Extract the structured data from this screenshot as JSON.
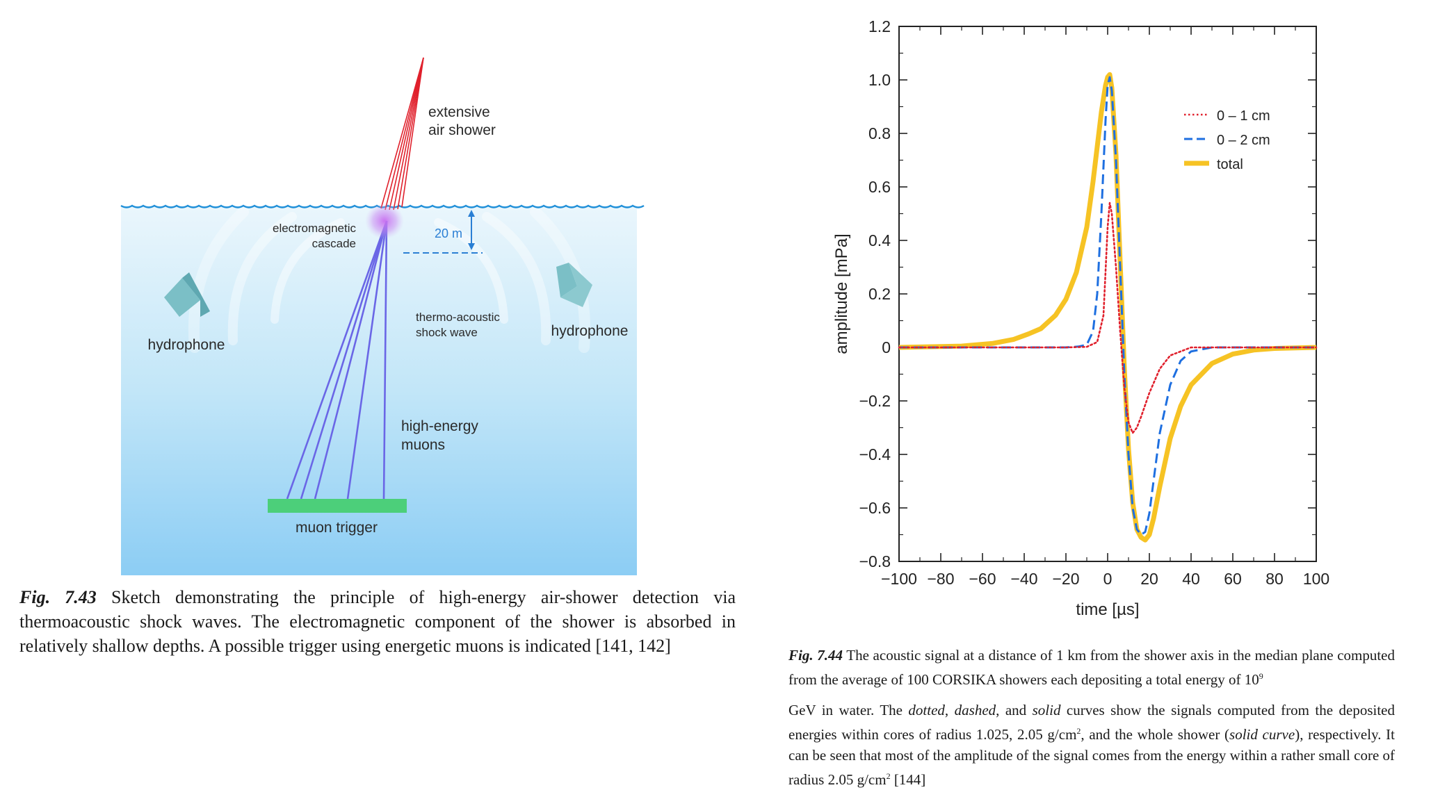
{
  "figure_left": {
    "labels": {
      "air_shower": [
        "extensive",
        "air shower"
      ],
      "cascade": [
        "electromagnetic",
        "cascade"
      ],
      "depth": "20 m",
      "shock_wave": [
        "thermo-acoustic",
        "shock wave"
      ],
      "hydrophone_left": "hydrophone",
      "hydrophone_right": "hydrophone",
      "muons": [
        "high-energy",
        "muons"
      ],
      "trigger": "muon trigger"
    },
    "colors": {
      "water_top": "#eaf6fc",
      "water_bottom": "#8ccdf4",
      "shower": "#e0202c",
      "muons": "#6a66e6",
      "trigger": "#4ccf7a",
      "hydrophone": "#7bbfc6",
      "annotation": "#2a7fd4"
    },
    "caption": {
      "figno": "Fig. 7.43",
      "text": " Sketch demonstrating the principle of high-energy air-shower detection via thermoacoustic shock waves. The electromagnetic component of the shower is absorbed in relatively shallow depths. A possible trigger using energetic muons is indicated [141, 142]"
    }
  },
  "chart_data": {
    "type": "line",
    "xlabel": "time [µs]",
    "ylabel": "amplitude [mPa]",
    "xlim": [
      -100,
      100
    ],
    "ylim": [
      -0.8,
      1.2
    ],
    "xticks": [
      -100,
      -80,
      -60,
      -40,
      -20,
      0,
      20,
      40,
      60,
      80,
      100
    ],
    "xtick_labels": [
      "−100",
      "−80",
      "−60",
      "−40",
      "−20",
      "0",
      "20",
      "40",
      "60",
      "80",
      "100"
    ],
    "yticks": [
      1.2,
      1.0,
      0.8,
      0.6,
      0.4,
      0.2,
      0,
      -0.2,
      -0.4,
      -0.6,
      -0.8
    ],
    "ytick_labels": [
      "1.2",
      "1.0",
      "0.8",
      "0.6",
      "0.4",
      "0.2",
      "0",
      "−0.2",
      "−0.4",
      "−0.6",
      "−0.8"
    ],
    "legend_position": "top-right",
    "series": [
      {
        "name": "0 – 1 cm",
        "style": "dotted",
        "color": "#e0202c",
        "x": [
          -100,
          -20,
          -10,
          -5,
          -2,
          0,
          1,
          2,
          4,
          6,
          8,
          10,
          12,
          14,
          16,
          20,
          25,
          30,
          40,
          50,
          100
        ],
        "y": [
          0,
          0,
          0.002,
          0.02,
          0.12,
          0.45,
          0.54,
          0.5,
          0.3,
          0.06,
          -0.15,
          -0.28,
          -0.32,
          -0.3,
          -0.26,
          -0.17,
          -0.08,
          -0.03,
          0,
          0,
          0
        ]
      },
      {
        "name": "0 – 2 cm",
        "style": "dashed",
        "color": "#1e6fe0",
        "x": [
          -100,
          -20,
          -14,
          -10,
          -7,
          -5,
          -3,
          -1,
          0,
          1,
          2,
          4,
          6,
          8,
          10,
          12,
          14,
          16,
          18,
          20,
          22,
          25,
          30,
          35,
          40,
          50,
          60,
          100
        ],
        "y": [
          0,
          0,
          0.003,
          0.01,
          0.06,
          0.2,
          0.5,
          0.85,
          0.98,
          1.01,
          0.96,
          0.7,
          0.3,
          -0.1,
          -0.4,
          -0.6,
          -0.68,
          -0.7,
          -0.69,
          -0.62,
          -0.5,
          -0.32,
          -0.14,
          -0.05,
          -0.015,
          0,
          0,
          0
        ]
      },
      {
        "name": "total",
        "style": "solid",
        "color": "#f6c324",
        "x": [
          -100,
          -70,
          -55,
          -45,
          -38,
          -32,
          -25,
          -20,
          -15,
          -10,
          -7,
          -5,
          -3,
          -1,
          0,
          1,
          2,
          4,
          6,
          8,
          10,
          12,
          14,
          16,
          18,
          20,
          22,
          25,
          30,
          35,
          40,
          50,
          60,
          70,
          80,
          100
        ],
        "y": [
          0,
          0.005,
          0.015,
          0.03,
          0.05,
          0.07,
          0.12,
          0.18,
          0.28,
          0.45,
          0.62,
          0.75,
          0.88,
          0.98,
          1.01,
          1.02,
          0.97,
          0.72,
          0.32,
          -0.08,
          -0.38,
          -0.58,
          -0.68,
          -0.71,
          -0.72,
          -0.7,
          -0.64,
          -0.52,
          -0.34,
          -0.22,
          -0.14,
          -0.06,
          -0.025,
          -0.01,
          -0.004,
          0
        ]
      }
    ],
    "caption": {
      "figno": "Fig. 7.44",
      "p1": " The acoustic signal at a distance of 1 km from the shower axis in the median plane computed from the average of 100 CORSIKA showers each depositing a total energy of ",
      "energy_base": "10",
      "energy_exp": "9",
      "p2a": "GeV in water. The ",
      "w_dotted": "dotted",
      "w_dashed": "dashed",
      "w_solid": "solid",
      "p2b": " curves show the signals computed from the deposited energies within cores of radius 1.025, 2.05 g/cm",
      "sq": "2",
      "p2c": ", and the whole shower (",
      "w_solid_curve": "solid curve",
      "p2d": "), respectively. It can be seen that most of the amplitude of the signal comes from the energy within a rather small core of radius 2.05 g/cm",
      "p2e": " [144]"
    }
  }
}
